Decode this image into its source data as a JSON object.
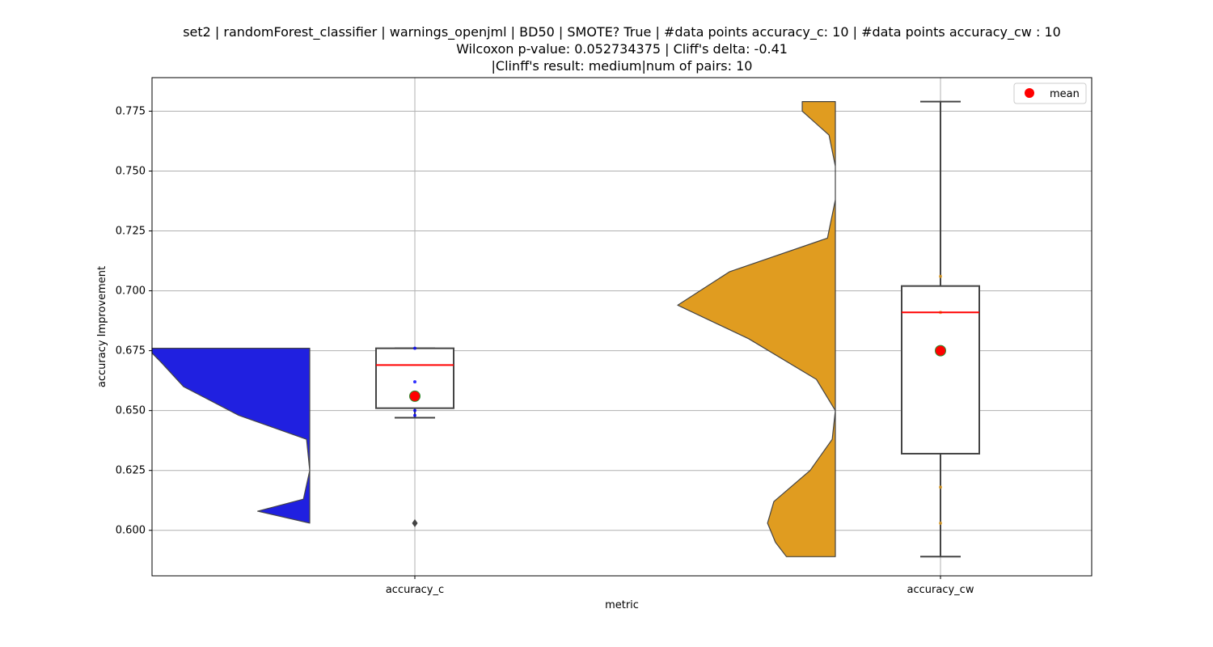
{
  "chart_data": {
    "type": "violin+box",
    "title_lines": [
      "set2 | randomForest_classifier | warnings_openjml | BD50 | SMOTE? True | #data points accuracy_c: 10 | #data points accuracy_cw : 10",
      "Wilcoxon p-value: 0.052734375 | Cliff's delta: -0.41",
      "|Clinff's result: medium|num of pairs: 10"
    ],
    "xlabel": "metric",
    "ylabel": "accuracy Improvement",
    "categories": [
      "accuracy_c",
      "accuracy_cw"
    ],
    "ylim": [
      0.581,
      0.789
    ],
    "yticks": [
      0.6,
      0.625,
      0.65,
      0.675,
      0.7,
      0.725,
      0.75,
      0.775
    ],
    "ytick_labels": [
      "0.600",
      "0.625",
      "0.650",
      "0.675",
      "0.700",
      "0.725",
      "0.750",
      "0.775"
    ],
    "grid": true,
    "legend": {
      "position": "top-right",
      "label": "mean",
      "marker_color": "#ff0000"
    },
    "series": [
      {
        "category": "accuracy_c",
        "violin_color": "#2020e0",
        "points_color": "#0000ff",
        "violin_range": [
          0.603,
          0.676
        ],
        "violin_profile": [
          [
            0.603,
            0.0
          ],
          [
            0.608,
            0.33
          ],
          [
            0.613,
            0.04
          ],
          [
            0.625,
            0.0
          ],
          [
            0.638,
            0.02
          ],
          [
            0.648,
            0.45
          ],
          [
            0.66,
            0.8
          ],
          [
            0.67,
            0.94
          ],
          [
            0.674,
            1.0
          ],
          [
            0.676,
            1.0
          ]
        ],
        "box": {
          "q1": 0.651,
          "median": 0.669,
          "q3": 0.676,
          "whisker_low": 0.647,
          "whisker_high": 0.676
        },
        "mean": 0.656,
        "outliers": [
          0.603
        ],
        "points": [
          0.676,
          0.662,
          0.65,
          0.648
        ]
      },
      {
        "category": "accuracy_cw",
        "violin_color": "#e09c20",
        "points_color": "#e09c20",
        "violin_range": [
          0.589,
          0.779
        ],
        "violin_profile": [
          [
            0.589,
            0.31
          ],
          [
            0.595,
            0.38
          ],
          [
            0.603,
            0.43
          ],
          [
            0.612,
            0.39
          ],
          [
            0.625,
            0.16
          ],
          [
            0.638,
            0.02
          ],
          [
            0.65,
            0.0
          ],
          [
            0.663,
            0.12
          ],
          [
            0.68,
            0.55
          ],
          [
            0.694,
            1.0
          ],
          [
            0.708,
            0.67
          ],
          [
            0.722,
            0.05
          ],
          [
            0.738,
            0.0
          ],
          [
            0.752,
            0.0
          ],
          [
            0.765,
            0.04
          ],
          [
            0.775,
            0.21
          ],
          [
            0.779,
            0.21
          ]
        ],
        "box": {
          "q1": 0.632,
          "median": 0.691,
          "q3": 0.702,
          "whisker_low": 0.589,
          "whisker_high": 0.779
        },
        "mean": 0.675,
        "outliers": [],
        "points": [
          0.706,
          0.691,
          0.618,
          0.603
        ]
      }
    ]
  }
}
